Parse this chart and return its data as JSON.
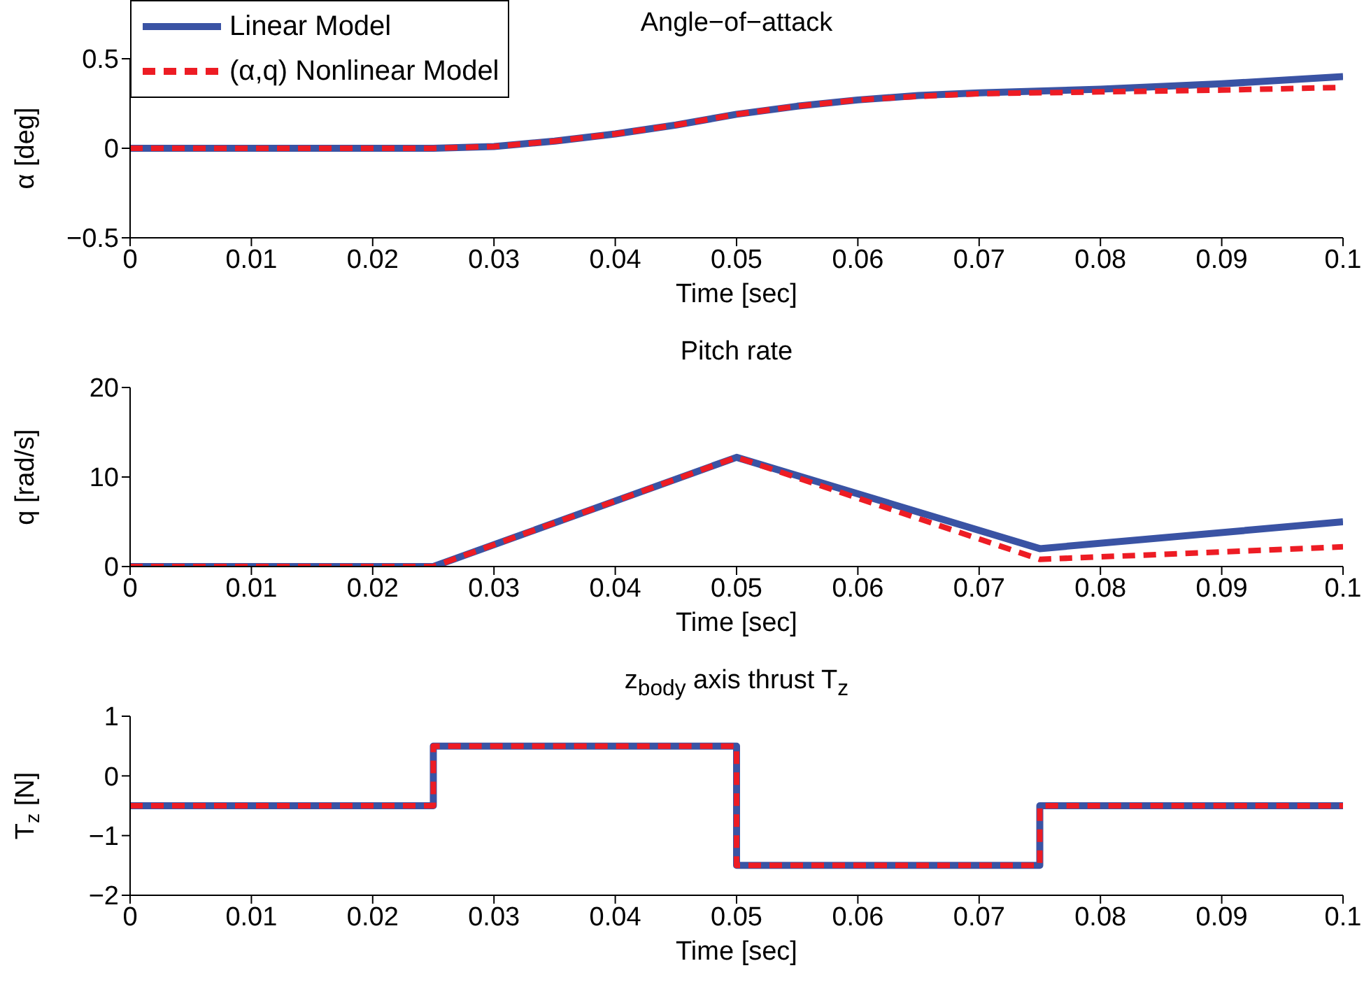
{
  "chart_data": [
    {
      "type": "line",
      "title": "Angle−of−attack",
      "xlabel": "Time [sec]",
      "ylabel": "α [deg]",
      "xlim": [
        0,
        0.1
      ],
      "xticks": [
        0,
        0.01,
        0.02,
        0.03,
        0.04,
        0.05,
        0.06,
        0.07,
        0.08,
        0.09,
        0.1
      ],
      "ylim": [
        -0.5,
        0.5
      ],
      "yticks": [
        {
          "value": -0.5,
          "label": "−0.5"
        },
        0,
        0.5
      ],
      "legend": "top left",
      "x": [
        0,
        0.01,
        0.02,
        0.025,
        0.03,
        0.035,
        0.04,
        0.045,
        0.05,
        0.055,
        0.06,
        0.065,
        0.07,
        0.08,
        0.09,
        0.1
      ],
      "series": [
        {
          "name": "Linear Model",
          "color": "#3a53a4",
          "line_style": "solid",
          "values": [
            0,
            0,
            0,
            0,
            0.01,
            0.04,
            0.08,
            0.13,
            0.19,
            0.235,
            0.27,
            0.295,
            0.31,
            0.33,
            0.36,
            0.4
          ]
        },
        {
          "name": "(α,q) Nonlinear Model",
          "color": "#ed1c24",
          "line_style": "dashed",
          "values": [
            0,
            0,
            0,
            0,
            0.01,
            0.04,
            0.08,
            0.13,
            0.19,
            0.235,
            0.27,
            0.29,
            0.305,
            0.315,
            0.325,
            0.34
          ]
        }
      ]
    },
    {
      "type": "line",
      "title": "Pitch rate",
      "xlabel": "Time [sec]",
      "ylabel": "q [rad/s]",
      "xlim": [
        0,
        0.1
      ],
      "xticks": [
        0,
        0.01,
        0.02,
        0.03,
        0.04,
        0.05,
        0.06,
        0.07,
        0.08,
        0.09,
        0.1
      ],
      "ylim": [
        0,
        20
      ],
      "yticks": [
        0,
        10,
        20
      ],
      "x": [
        0,
        0.025,
        0.05,
        0.075,
        0.1
      ],
      "series": [
        {
          "color": "#3a53a4",
          "line_style": "solid",
          "values": [
            0,
            0,
            12.2,
            2,
            5
          ]
        },
        {
          "color": "#ed1c24",
          "line_style": "dashed",
          "values": [
            0,
            0,
            12.2,
            0.8,
            2.2
          ]
        }
      ]
    },
    {
      "type": "step",
      "title": "z$_{body}$ axis thrust T$_{z}$",
      "xlabel": "Time [sec]",
      "ylabel": "T$_{z}$ [N]",
      "xlim": [
        0,
        0.1
      ],
      "xticks": [
        0,
        0.01,
        0.02,
        0.03,
        0.04,
        0.05,
        0.06,
        0.07,
        0.08,
        0.09,
        0.1
      ],
      "ylim": [
        -2,
        1
      ],
      "yticks": [
        {
          "value": -2,
          "label": "−2"
        },
        {
          "value": -1,
          "label": "−1"
        },
        0,
        1
      ],
      "x": [
        0,
        0.025,
        0.05,
        0.075,
        0.1
      ],
      "series": [
        {
          "color": "#3a53a4",
          "line_style": "solid",
          "values": [
            -0.5,
            0.5,
            -1.5,
            -0.5,
            -0.5
          ]
        },
        {
          "color": "#ed1c24",
          "line_style": "dashed",
          "values": [
            -0.5,
            0.5,
            -1.5,
            -0.5,
            -0.5
          ]
        }
      ]
    }
  ]
}
